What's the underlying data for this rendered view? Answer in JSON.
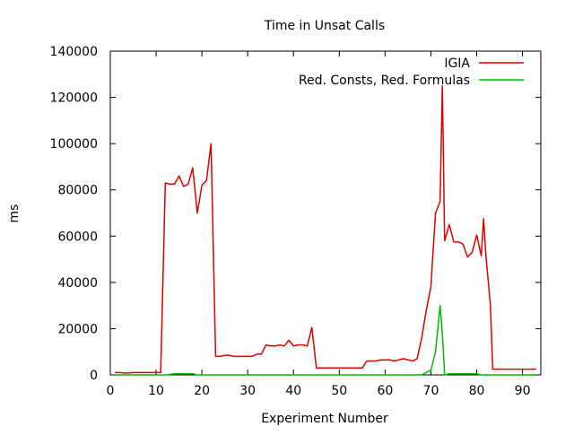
{
  "chart_data": {
    "type": "line",
    "title": "Time in Unsat Calls",
    "xlabel": "Experiment Number",
    "ylabel": "ms",
    "xlim": [
      0,
      94
    ],
    "ylim": [
      0,
      140000
    ],
    "xticks": [
      0,
      10,
      20,
      30,
      40,
      50,
      60,
      70,
      80,
      90
    ],
    "yticks": [
      0,
      20000,
      40000,
      60000,
      80000,
      100000,
      120000,
      140000
    ],
    "grid": false,
    "legend_position": "top-right",
    "series": [
      {
        "name": "IGIA",
        "color": "#dd0000",
        "points": [
          [
            1,
            1000
          ],
          [
            2,
            1000
          ],
          [
            3,
            800
          ],
          [
            4,
            800
          ],
          [
            5,
            1000
          ],
          [
            6,
            1000
          ],
          [
            7,
            1000
          ],
          [
            8,
            1000
          ],
          [
            9,
            1000
          ],
          [
            10,
            1000
          ],
          [
            11,
            1000
          ],
          [
            12,
            83000
          ],
          [
            13,
            82500
          ],
          [
            14,
            82500
          ],
          [
            15,
            86000
          ],
          [
            16,
            81500
          ],
          [
            17,
            82500
          ],
          [
            18,
            89500
          ],
          [
            19,
            70000
          ],
          [
            20,
            82000
          ],
          [
            21,
            84000
          ],
          [
            22,
            100000
          ],
          [
            23,
            8000
          ],
          [
            24,
            8000
          ],
          [
            25,
            8500
          ],
          [
            26,
            8500
          ],
          [
            27,
            8000
          ],
          [
            28,
            8000
          ],
          [
            29,
            8000
          ],
          [
            30,
            8000
          ],
          [
            31,
            8000
          ],
          [
            32,
            9000
          ],
          [
            33,
            9000
          ],
          [
            34,
            13000
          ],
          [
            35,
            12500
          ],
          [
            36,
            12500
          ],
          [
            37,
            13000
          ],
          [
            38,
            12500
          ],
          [
            39,
            15000
          ],
          [
            40,
            12500
          ],
          [
            41,
            13000
          ],
          [
            42,
            13000
          ],
          [
            43,
            12500
          ],
          [
            44,
            20500
          ],
          [
            45,
            3000
          ],
          [
            46,
            3000
          ],
          [
            47,
            3000
          ],
          [
            48,
            3000
          ],
          [
            49,
            3000
          ],
          [
            50,
            3000
          ],
          [
            51,
            3000
          ],
          [
            52,
            3000
          ],
          [
            53,
            3000
          ],
          [
            54,
            3000
          ],
          [
            55,
            3000
          ],
          [
            56,
            6000
          ],
          [
            57,
            6000
          ],
          [
            58,
            6000
          ],
          [
            59,
            6500
          ],
          [
            60,
            6500
          ],
          [
            61,
            6500
          ],
          [
            62,
            6000
          ],
          [
            63,
            6500
          ],
          [
            64,
            7000
          ],
          [
            65,
            6500
          ],
          [
            66,
            6000
          ],
          [
            67,
            7000
          ],
          [
            68,
            16000
          ],
          [
            69,
            28000
          ],
          [
            70,
            38000
          ],
          [
            71,
            70000
          ],
          [
            72,
            75000
          ],
          [
            72.5,
            125000
          ],
          [
            73,
            58000
          ],
          [
            74,
            65000
          ],
          [
            75,
            57500
          ],
          [
            76,
            57500
          ],
          [
            77,
            56500
          ],
          [
            78,
            51000
          ],
          [
            79,
            53000
          ],
          [
            80,
            60500
          ],
          [
            81,
            51500
          ],
          [
            81.5,
            67500
          ],
          [
            82,
            52000
          ],
          [
            83,
            30000
          ],
          [
            83.5,
            2500
          ],
          [
            85,
            2500
          ],
          [
            86,
            2500
          ],
          [
            87,
            2500
          ],
          [
            88,
            2500
          ],
          [
            89,
            2500
          ],
          [
            90,
            2500
          ],
          [
            91,
            2500
          ],
          [
            92,
            2500
          ],
          [
            93,
            2500
          ]
        ]
      },
      {
        "name": "Red. Consts, Red. Formulas",
        "color": "#00bb00",
        "points": [
          [
            1,
            0
          ],
          [
            12,
            0
          ],
          [
            14,
            500
          ],
          [
            18,
            500
          ],
          [
            19,
            0
          ],
          [
            68,
            0
          ],
          [
            70,
            2000
          ],
          [
            71,
            10000
          ],
          [
            72,
            30000
          ],
          [
            72.5,
            18000
          ],
          [
            73,
            0
          ],
          [
            74,
            500
          ],
          [
            80,
            500
          ],
          [
            81,
            0
          ],
          [
            93,
            0
          ]
        ]
      }
    ]
  }
}
